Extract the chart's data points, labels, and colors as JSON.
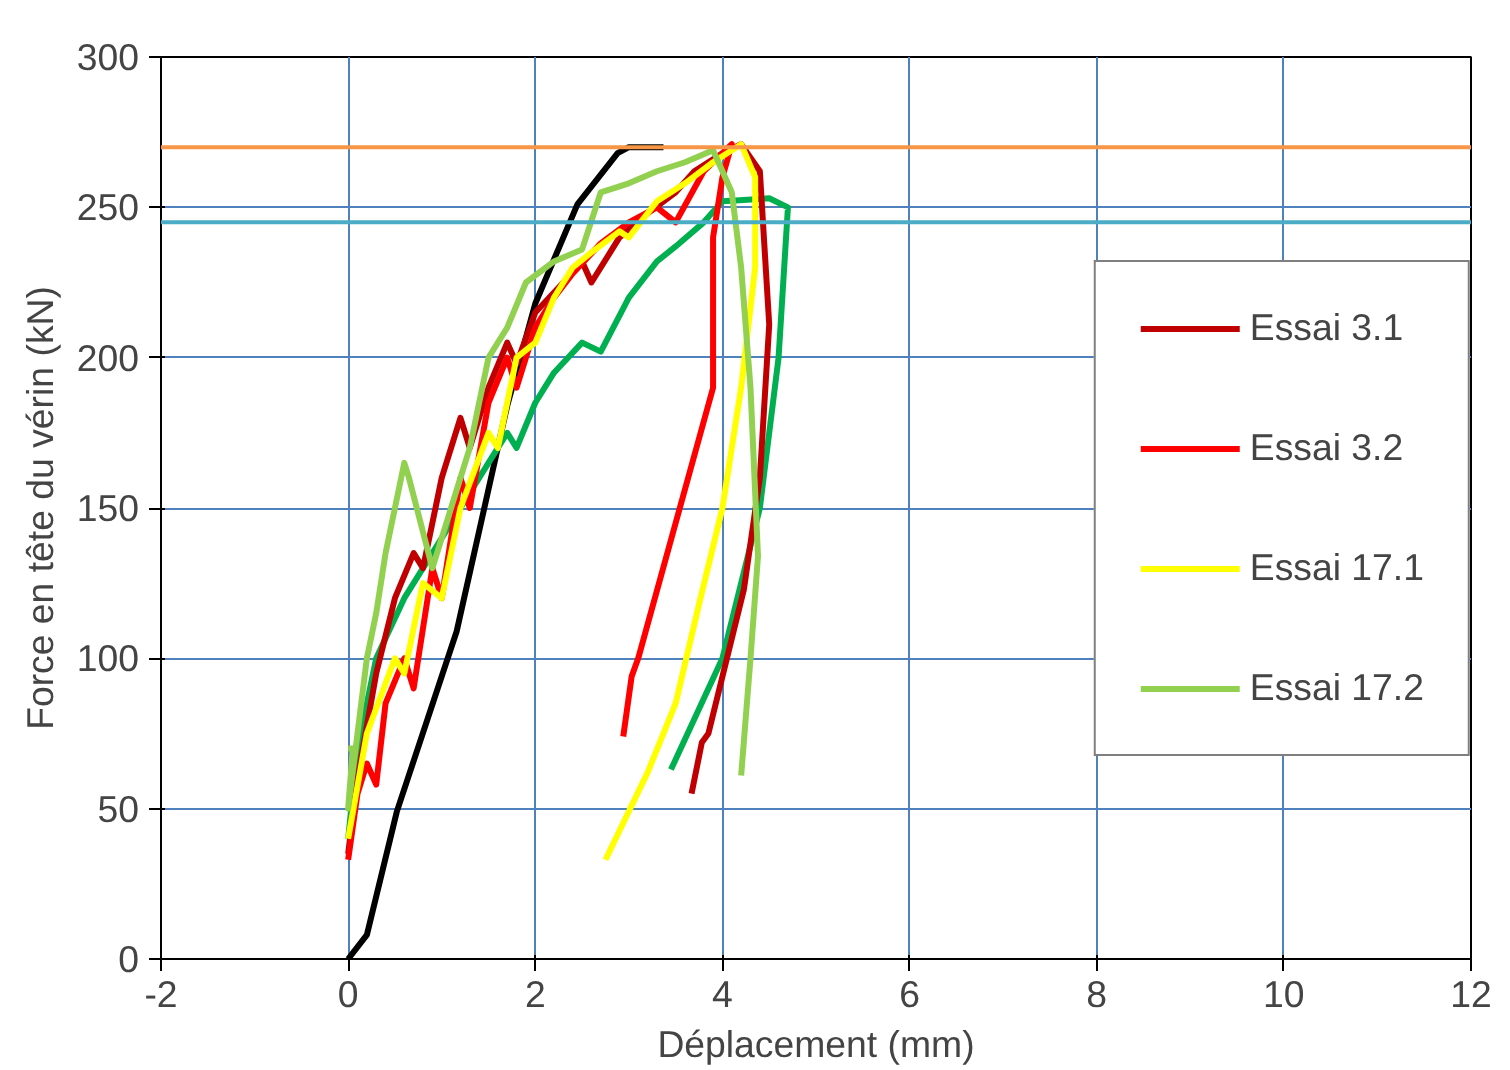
{
  "chart_data": {
    "type": "line",
    "xlabel": "Déplacement (mm)",
    "ylabel": "Force en tête du vérin (kN)",
    "xlim": [
      -2,
      12
    ],
    "xticks": [
      -2,
      0,
      2,
      4,
      6,
      8,
      10,
      12
    ],
    "ylim": [
      0,
      300
    ],
    "yticks": [
      0,
      50,
      100,
      150,
      200,
      250,
      300
    ],
    "grid": true,
    "legend": "right",
    "marker": "none",
    "line_style": "solid",
    "ref_lines": [
      {
        "axis": "y",
        "value": 270,
        "color": "#f79646"
      },
      {
        "axis": "y",
        "value": 245,
        "color": "#4bacc6"
      }
    ],
    "series": [
      {
        "color": "#000000",
        "x": [
          0,
          0.2,
          0.52,
          1.16,
          1.7,
          2.0,
          2.45,
          2.88,
          3.0,
          3.37
        ],
        "values": [
          0,
          8,
          49,
          109,
          184,
          218,
          251,
          268,
          270,
          270
        ]
      },
      {
        "color": "#00b050",
        "x": [
          0,
          0.1,
          0.3,
          0.6,
          0.9,
          1.2,
          1.5,
          1.7,
          1.8,
          2.0,
          2.2,
          2.5,
          2.7,
          3.0,
          3.3,
          3.5,
          3.8,
          4.0,
          4.5,
          4.7,
          4.6,
          4.4,
          4.0,
          3.45
        ],
        "values": [
          40,
          70,
          100,
          120,
          135,
          150,
          165,
          175,
          170,
          185,
          195,
          205,
          202,
          220,
          232,
          237,
          245,
          252,
          253,
          250,
          200,
          150,
          100,
          63
        ]
      },
      {
        "name": "Essai 3.1",
        "color": "#c00000",
        "x": [
          0,
          0.1,
          0.3,
          0.5,
          0.7,
          0.8,
          1.0,
          1.2,
          1.3,
          1.5,
          1.7,
          1.8,
          2.0,
          2.3,
          2.5,
          2.6,
          2.9,
          3.2,
          3.5,
          3.7,
          4.0,
          4.2,
          4.4,
          4.5,
          4.4,
          4.23,
          3.85,
          3.78,
          3.67
        ],
        "values": [
          35,
          60,
          95,
          120,
          135,
          130,
          160,
          180,
          170,
          190,
          205,
          198,
          215,
          225,
          232,
          225,
          240,
          248,
          255,
          262,
          268,
          271,
          262,
          211,
          160,
          123,
          75,
          72,
          55
        ]
      },
      {
        "name": "Essai 3.2",
        "color": "#ff0000",
        "x": [
          0,
          0.1,
          0.2,
          0.3,
          0.4,
          0.6,
          0.7,
          0.9,
          1.0,
          1.2,
          1.3,
          1.5,
          1.7,
          1.8,
          2.0,
          2.2,
          2.4,
          2.7,
          3.0,
          3.3,
          3.5,
          3.8,
          4.1,
          4.0,
          3.9,
          3.9,
          3.5,
          3.1,
          3.03,
          2.94
        ],
        "values": [
          33,
          55,
          65,
          58,
          85,
          100,
          90,
          130,
          120,
          160,
          150,
          185,
          200,
          190,
          210,
          220,
          228,
          238,
          245,
          250,
          245,
          262,
          271,
          260,
          240,
          190,
          145,
          100,
          94,
          74
        ]
      },
      {
        "name": "Essai 17.1",
        "color": "#ffff00",
        "x": [
          0,
          0.2,
          0.5,
          0.6,
          0.8,
          1.0,
          1.2,
          1.5,
          1.6,
          1.8,
          2.0,
          2.2,
          2.4,
          2.6,
          2.9,
          3.0,
          3.3,
          3.6,
          3.9,
          4.2,
          4.35,
          4.35,
          4.2,
          4.0,
          3.75,
          3.5,
          3.2,
          2.75
        ],
        "values": [
          40,
          75,
          100,
          95,
          125,
          120,
          150,
          175,
          170,
          200,
          205,
          220,
          230,
          235,
          242,
          240,
          252,
          258,
          265,
          271,
          260,
          230,
          190,
          150,
          118,
          85,
          62,
          33
        ]
      },
      {
        "name": "Essai 17.2",
        "color": "#92d050",
        "x": [
          0,
          0.05,
          0,
          0.1,
          0.2,
          0.3,
          0.4,
          0.5,
          0.6,
          0.65,
          0.9,
          1.1,
          1.3,
          1.5,
          1.7,
          1.9,
          2.2,
          2.5,
          2.7,
          3.0,
          3.3,
          3.6,
          3.9,
          4.1,
          4.2,
          4.3,
          4.38,
          4.3,
          4.2
        ],
        "values": [
          70,
          70,
          50,
          75,
          100,
          115,
          135,
          150,
          165,
          160,
          130,
          150,
          170,
          200,
          210,
          225,
          232,
          236,
          255,
          258,
          262,
          265,
          269,
          255,
          230,
          190,
          134,
          100,
          61
        ]
      }
    ]
  }
}
